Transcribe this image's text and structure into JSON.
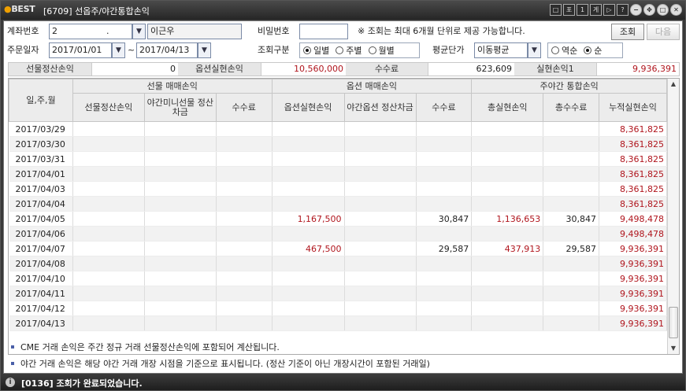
{
  "window": {
    "logo": "BEST",
    "title": "[6709] 선옵주/야간통합손익",
    "buttons": [
      "□",
      "포",
      "1",
      "게",
      "▷",
      "?"
    ]
  },
  "form": {
    "account_label": "계좌번호",
    "account_value": "2",
    "account_mask": ".",
    "account_name": "이근우",
    "password_label": "비밀번호",
    "password_value": "",
    "notice": "※ 조회는 최대 6개월 단위로 제공 가능합니다.",
    "query_button": "조회",
    "next_button": "다음",
    "date_label": "주문일자",
    "date_from": "2017/01/01",
    "date_sep": "~",
    "date_to": "2017/04/13",
    "period_label": "조회구분",
    "period_options": [
      "일별",
      "주별",
      "월별"
    ],
    "period_selected": "일별",
    "avg_label": "평균단가",
    "avg_value": "이동평균",
    "sort_options": [
      "역순",
      "순"
    ],
    "sort_selected": "순"
  },
  "summary": {
    "futures_label": "선물정산손익",
    "futures_value": "0",
    "options_label": "옵션실현손익",
    "options_value": "10,560,000",
    "fee_label": "수수료",
    "fee_value": "623,609",
    "realized_label": "실현손익1",
    "realized_value": "9,936,391"
  },
  "table": {
    "date_header": "일,주,월",
    "groups": [
      "선물 매매손익",
      "옵션 매매손익",
      "주야간 통합손익"
    ],
    "columns": [
      "선물정산손익",
      "야간미니선물 정산차금",
      "수수료",
      "옵션실현손익",
      "야간옵션 정산차금",
      "수수료",
      "총실현손익",
      "총수수료",
      "누적실현손익"
    ],
    "rows": [
      [
        "2017/03/29",
        "",
        "",
        "",
        "",
        "",
        "",
        "",
        "",
        "8,361,825"
      ],
      [
        "2017/03/30",
        "",
        "",
        "",
        "",
        "",
        "",
        "",
        "",
        "8,361,825"
      ],
      [
        "2017/03/31",
        "",
        "",
        "",
        "",
        "",
        "",
        "",
        "",
        "8,361,825"
      ],
      [
        "2017/04/01",
        "",
        "",
        "",
        "",
        "",
        "",
        "",
        "",
        "8,361,825"
      ],
      [
        "2017/04/03",
        "",
        "",
        "",
        "",
        "",
        "",
        "",
        "",
        "8,361,825"
      ],
      [
        "2017/04/04",
        "",
        "",
        "",
        "",
        "",
        "",
        "",
        "",
        "8,361,825"
      ],
      [
        "2017/04/05",
        "",
        "",
        "",
        "1,167,500",
        "",
        "30,847",
        "1,136,653",
        "30,847",
        "9,498,478"
      ],
      [
        "2017/04/06",
        "",
        "",
        "",
        "",
        "",
        "",
        "",
        "",
        "9,498,478"
      ],
      [
        "2017/04/07",
        "",
        "",
        "",
        "467,500",
        "",
        "29,587",
        "437,913",
        "29,587",
        "9,936,391"
      ],
      [
        "2017/04/08",
        "",
        "",
        "",
        "",
        "",
        "",
        "",
        "",
        "9,936,391"
      ],
      [
        "2017/04/10",
        "",
        "",
        "",
        "",
        "",
        "",
        "",
        "",
        "9,936,391"
      ],
      [
        "2017/04/11",
        "",
        "",
        "",
        "",
        "",
        "",
        "",
        "",
        "9,936,391"
      ],
      [
        "2017/04/12",
        "",
        "",
        "",
        "",
        "",
        "",
        "",
        "",
        "9,936,391"
      ],
      [
        "2017/04/13",
        "",
        "",
        "",
        "",
        "",
        "",
        "",
        "",
        "9,936,391"
      ]
    ]
  },
  "notes": [
    "CME 거래 손익은 주간 정규 거래 선물정산손익에 포함되어 계산됩니다.",
    "야간 거래 손익은 해당 야간 거래 개장 시점을 기준으로 표시됩니다. (정산 기준이 아닌 개장시간이 포함된 거래일)"
  ],
  "status": {
    "icon": "i",
    "message": "[0136] 조회가 완료되었습니다."
  },
  "colors": {
    "titlebar": "#262626",
    "profit_red": "#b0151d",
    "header_gray": "#ececec"
  }
}
